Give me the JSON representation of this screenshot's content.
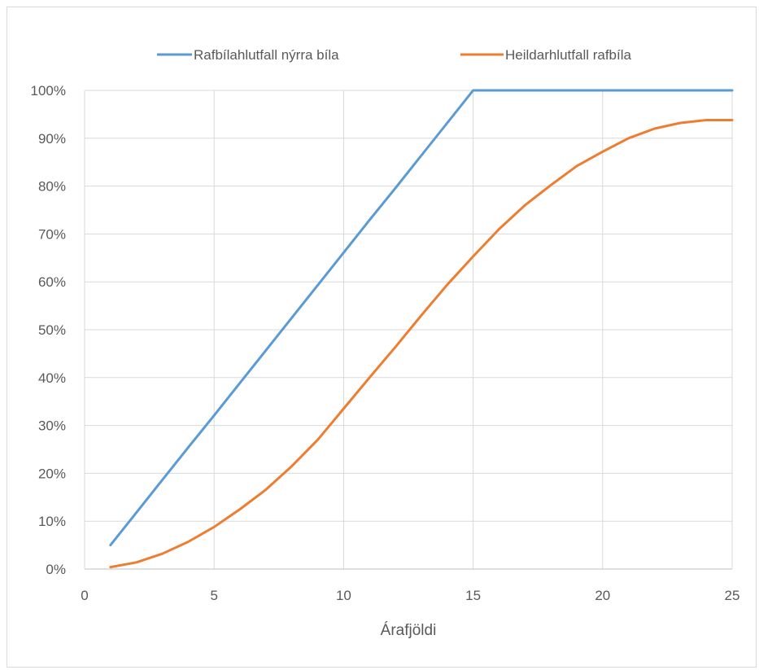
{
  "chart_data": {
    "type": "line",
    "title": "",
    "xlabel": "Árafjöldi",
    "ylabel": "",
    "xlim": [
      0,
      25
    ],
    "ylim": [
      0,
      1
    ],
    "x_ticks": [
      0,
      5,
      10,
      15,
      20,
      25
    ],
    "x_tick_labels": [
      "0",
      "5",
      "10",
      "15",
      "20",
      "25"
    ],
    "y_ticks": [
      0,
      0.1,
      0.2,
      0.3,
      0.4,
      0.5,
      0.6,
      0.7,
      0.8,
      0.9,
      1.0
    ],
    "y_tick_labels": [
      "0%",
      "10%",
      "20%",
      "30%",
      "40%",
      "50%",
      "60%",
      "70%",
      "80%",
      "90%",
      "100%"
    ],
    "grid": true,
    "legend_position": "top",
    "series": [
      {
        "name": "Rafbílahlutfall nýrra bíla",
        "color": "#5b9bd5",
        "x": [
          1,
          2,
          3,
          4,
          5,
          6,
          7,
          8,
          9,
          10,
          11,
          12,
          13,
          14,
          15,
          16,
          17,
          18,
          19,
          20,
          21,
          22,
          23,
          24,
          25
        ],
        "y": [
          0.05,
          0.118,
          0.186,
          0.254,
          0.321,
          0.389,
          0.457,
          0.525,
          0.593,
          0.661,
          0.729,
          0.796,
          0.864,
          0.932,
          1.0,
          1.0,
          1.0,
          1.0,
          1.0,
          1.0,
          1.0,
          1.0,
          1.0,
          1.0,
          1.0
        ]
      },
      {
        "name": "Heildarhlutfall rafbíla",
        "color": "#ed7d31",
        "x": [
          1,
          2,
          3,
          4,
          5,
          6,
          7,
          8,
          9,
          10,
          11,
          12,
          13,
          14,
          15,
          16,
          17,
          18,
          19,
          20,
          21,
          22,
          23,
          24,
          25
        ],
        "y": [
          0.004,
          0.014,
          0.032,
          0.057,
          0.088,
          0.125,
          0.166,
          0.215,
          0.27,
          0.335,
          0.4,
          0.464,
          0.53,
          0.594,
          0.653,
          0.71,
          0.76,
          0.802,
          0.842,
          0.872,
          0.9,
          0.92,
          0.932,
          0.938,
          0.938
        ]
      }
    ]
  }
}
